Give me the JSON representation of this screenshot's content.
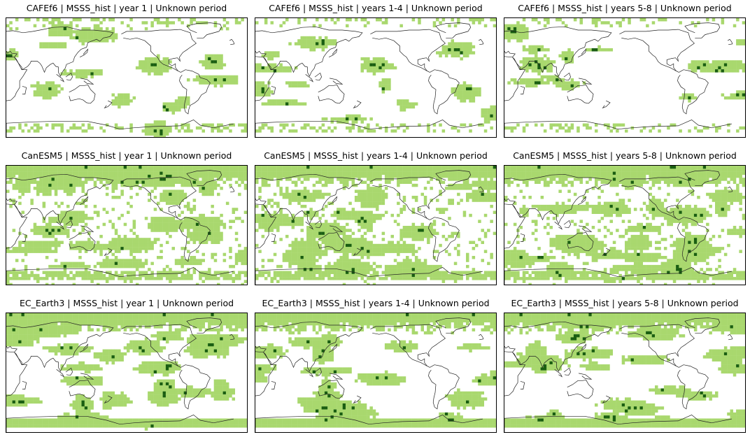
{
  "colors": {
    "background": "#ffffff",
    "light_green": "#a9d86e",
    "dark_green": "#1a5e12",
    "coastline": "#222222",
    "frame": "#000000"
  },
  "panels": [
    {
      "title": "CAFEf6 | MSSS_hist | year 1 | Unknown period",
      "model": "CAFEf6",
      "lead": "y1"
    },
    {
      "title": "CAFEf6 | MSSS_hist | years 1-4 | Unknown period",
      "model": "CAFEf6",
      "lead": "y14"
    },
    {
      "title": "CAFEf6 | MSSS_hist | years 5-8 | Unknown period",
      "model": "CAFEf6",
      "lead": "y58"
    },
    {
      "title": "CanESM5 | MSSS_hist | year 1 | Unknown period",
      "model": "CanESM5",
      "lead": "y1"
    },
    {
      "title": "CanESM5 | MSSS_hist | years 1-4 | Unknown period",
      "model": "CanESM5",
      "lead": "y14"
    },
    {
      "title": "CanESM5 | MSSS_hist | years 5-8 | Unknown period",
      "model": "CanESM5",
      "lead": "y58"
    },
    {
      "title": "EC_Earth3 | MSSS_hist | year 1 | Unknown period",
      "model": "EC_Earth3",
      "lead": "y1"
    },
    {
      "title": "EC_Earth3 | MSSS_hist | years 1-4 | Unknown period",
      "model": "EC_Earth3",
      "lead": "y14"
    },
    {
      "title": "EC_Earth3 | MSSS_hist | years 5-8 | Unknown period",
      "model": "EC_Earth3",
      "lead": "y58"
    }
  ]
}
